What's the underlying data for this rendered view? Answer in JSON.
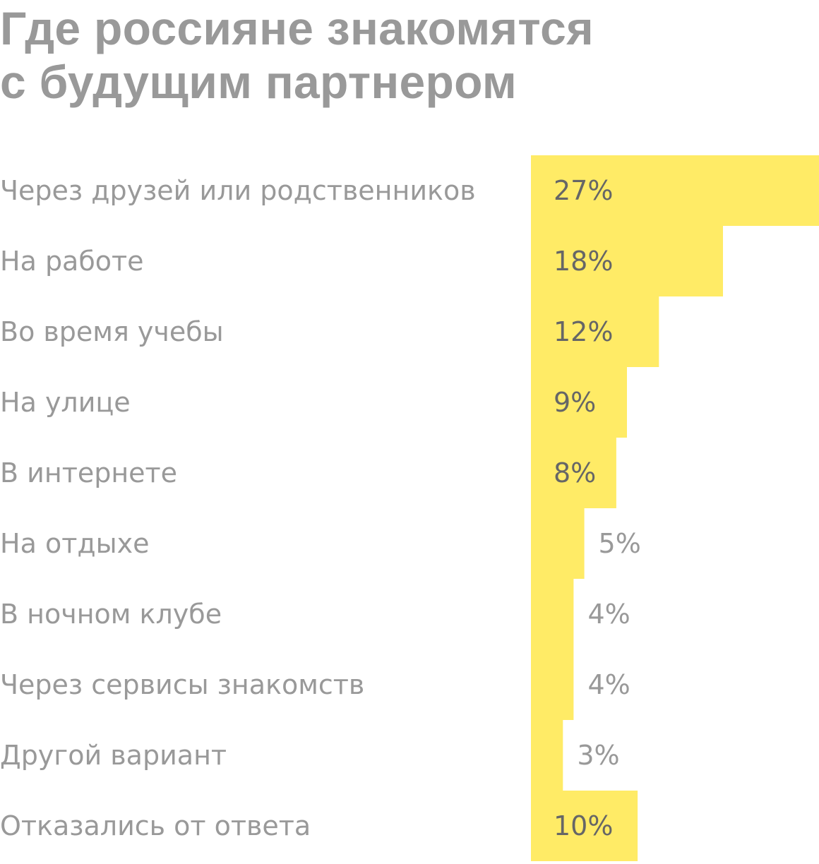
{
  "chart_data": {
    "type": "bar",
    "orientation": "horizontal",
    "title_lines": [
      "Где россияне знакомятся",
      "с будущим партнером"
    ],
    "categories": [
      "Через друзей или родственников",
      "На работе",
      "Во время учебы",
      "На улице",
      "В интернете",
      "На отдыхе",
      "В ночном клубе",
      "Через сервисы знакомств",
      "Другой вариант",
      "Отказались от ответа"
    ],
    "values": [
      27,
      18,
      12,
      9,
      8,
      5,
      4,
      4,
      3,
      10
    ],
    "value_labels": [
      "27%",
      "18%",
      "12%",
      "9%",
      "8%",
      "5%",
      "4%",
      "4%",
      "3%",
      "10%"
    ],
    "unit": "%",
    "xlim": [
      0,
      27
    ],
    "grid": false,
    "legend": "none"
  },
  "colors": {
    "bar": "#FFEB66",
    "label_text": "#999999",
    "value_text_on_bar": "#666666",
    "value_text_outside": "#999999",
    "title_text": "#999999"
  }
}
